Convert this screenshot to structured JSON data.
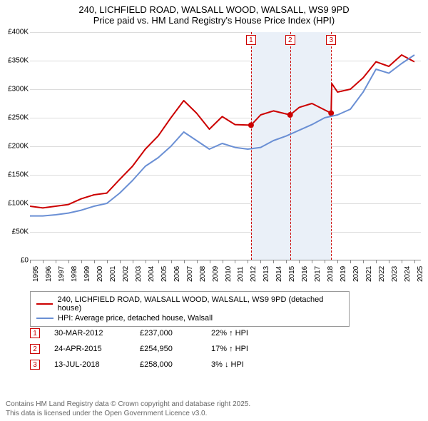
{
  "title": {
    "line1": "240, LICHFIELD ROAD, WALSALL WOOD, WALSALL, WS9 9PD",
    "line2": "Price paid vs. HM Land Registry's House Price Index (HPI)",
    "fontsize": 13,
    "color": "#000000"
  },
  "chart": {
    "type": "line",
    "background_color": "#ffffff",
    "grid_color": "#dcdcdc",
    "xlim": [
      1995,
      2025.5
    ],
    "ylim": [
      0,
      400000
    ],
    "ytick_step": 50000,
    "ytick_labels": [
      "£0",
      "£50K",
      "£100K",
      "£150K",
      "£200K",
      "£250K",
      "£300K",
      "£350K",
      "£400K"
    ],
    "xtick_step": 1,
    "xtick_labels": [
      "1995",
      "1996",
      "1997",
      "1998",
      "1999",
      "2000",
      "2001",
      "2002",
      "2003",
      "2004",
      "2005",
      "2006",
      "2007",
      "2008",
      "2009",
      "2010",
      "2011",
      "2012",
      "2013",
      "2014",
      "2015",
      "2016",
      "2017",
      "2018",
      "2019",
      "2020",
      "2021",
      "2022",
      "2023",
      "2024",
      "2025"
    ],
    "axis_label_fontsize": 10,
    "marker_band_color": "#eaf0f8",
    "marker_line_color": "#cc0000",
    "series": [
      {
        "name": "price_paid",
        "label": "240, LICHFIELD ROAD, WALSALL WOOD, WALSALL, WS9 9PD (detached house)",
        "color": "#cc0000",
        "line_width": 2,
        "points": [
          [
            1995,
            95000
          ],
          [
            1996,
            92000
          ],
          [
            1997,
            95000
          ],
          [
            1998,
            98000
          ],
          [
            1999,
            108000
          ],
          [
            2000,
            115000
          ],
          [
            2001,
            118000
          ],
          [
            2002,
            142000
          ],
          [
            2003,
            165000
          ],
          [
            2004,
            195000
          ],
          [
            2005,
            218000
          ],
          [
            2006,
            250000
          ],
          [
            2007,
            280000
          ],
          [
            2008,
            258000
          ],
          [
            2009,
            230000
          ],
          [
            2010,
            252000
          ],
          [
            2011,
            238000
          ],
          [
            2012.25,
            237000
          ],
          [
            2013,
            255000
          ],
          [
            2014,
            262000
          ],
          [
            2015.3,
            254950
          ],
          [
            2016,
            268000
          ],
          [
            2017,
            275000
          ],
          [
            2018.5,
            258000
          ],
          [
            2018.55,
            310000
          ],
          [
            2019,
            295000
          ],
          [
            2020,
            300000
          ],
          [
            2021,
            320000
          ],
          [
            2022,
            348000
          ],
          [
            2023,
            340000
          ],
          [
            2024,
            360000
          ],
          [
            2025,
            348000
          ]
        ],
        "sale_dots": [
          {
            "x": 2012.25,
            "y": 237000
          },
          {
            "x": 2015.3,
            "y": 254950
          },
          {
            "x": 2018.5,
            "y": 258000
          }
        ]
      },
      {
        "name": "hpi",
        "label": "HPI: Average price, detached house, Walsall",
        "color": "#6a8fd4",
        "line_width": 2,
        "points": [
          [
            1995,
            78000
          ],
          [
            1996,
            78000
          ],
          [
            1997,
            80000
          ],
          [
            1998,
            83000
          ],
          [
            1999,
            88000
          ],
          [
            2000,
            95000
          ],
          [
            2001,
            100000
          ],
          [
            2002,
            118000
          ],
          [
            2003,
            140000
          ],
          [
            2004,
            165000
          ],
          [
            2005,
            180000
          ],
          [
            2006,
            200000
          ],
          [
            2007,
            225000
          ],
          [
            2008,
            210000
          ],
          [
            2009,
            195000
          ],
          [
            2010,
            205000
          ],
          [
            2011,
            198000
          ],
          [
            2012,
            195000
          ],
          [
            2013,
            198000
          ],
          [
            2014,
            210000
          ],
          [
            2015,
            218000
          ],
          [
            2016,
            228000
          ],
          [
            2017,
            238000
          ],
          [
            2018,
            250000
          ],
          [
            2019,
            255000
          ],
          [
            2020,
            265000
          ],
          [
            2021,
            295000
          ],
          [
            2022,
            335000
          ],
          [
            2023,
            328000
          ],
          [
            2024,
            345000
          ],
          [
            2025,
            360000
          ]
        ]
      }
    ],
    "markers": [
      {
        "num": "1",
        "x": 2012.25
      },
      {
        "num": "2",
        "x": 2015.3
      },
      {
        "num": "3",
        "x": 2018.5
      }
    ]
  },
  "legend": {
    "border_color": "#999999",
    "fontsize": 11
  },
  "transactions": [
    {
      "num": "1",
      "date": "30-MAR-2012",
      "price": "£237,000",
      "change": "22% ↑ HPI"
    },
    {
      "num": "2",
      "date": "24-APR-2015",
      "price": "£254,950",
      "change": "17% ↑ HPI"
    },
    {
      "num": "3",
      "date": "13-JUL-2018",
      "price": "£258,000",
      "change": "3% ↓ HPI"
    }
  ],
  "footer": {
    "line1": "Contains HM Land Registry data © Crown copyright and database right 2025.",
    "line2": "This data is licensed under the Open Government Licence v3.0.",
    "color": "#666666",
    "fontsize": 10
  }
}
